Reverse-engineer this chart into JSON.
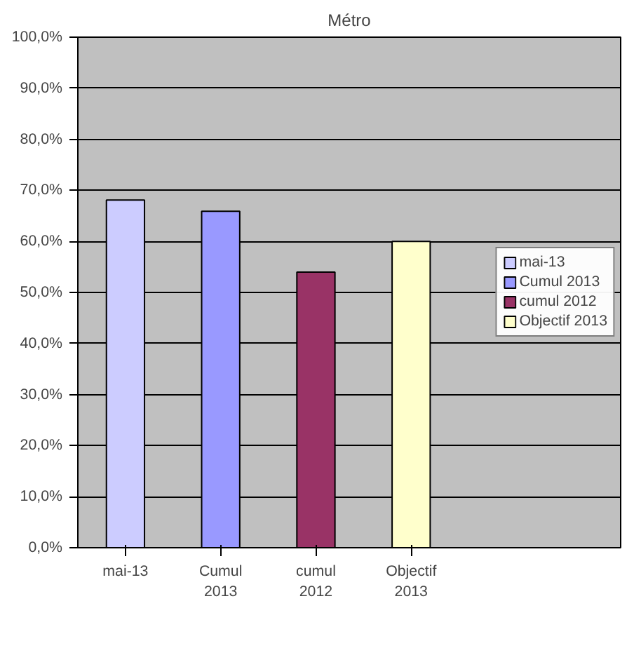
{
  "chart_data": {
    "type": "bar",
    "title": "Métro",
    "categories": [
      "mai-13",
      "Cumul 2013",
      "cumul 2012",
      "Objectif 2013"
    ],
    "series": [
      {
        "name": "mai-13",
        "color": "#ccccff",
        "values": [
          68.1,
          null,
          null,
          null
        ]
      },
      {
        "name": "Cumul 2013",
        "color": "#9999ff",
        "values": [
          null,
          65.9,
          null,
          null
        ]
      },
      {
        "name": "cumul 2012",
        "color": "#993366",
        "values": [
          null,
          null,
          54.0,
          null
        ]
      },
      {
        "name": "Objectif 2013",
        "color": "#ffffcc",
        "values": [
          null,
          null,
          null,
          60.0
        ]
      }
    ],
    "ylim": [
      0,
      100
    ],
    "yticks": [
      {
        "value": 0,
        "label": "0,0%"
      },
      {
        "value": 10,
        "label": "10,0%"
      },
      {
        "value": 20,
        "label": "20,0%"
      },
      {
        "value": 30,
        "label": "30,0%"
      },
      {
        "value": 40,
        "label": "40,0%"
      },
      {
        "value": 50,
        "label": "50,0%"
      },
      {
        "value": 60,
        "label": "60,0%"
      },
      {
        "value": 70,
        "label": "70,0%"
      },
      {
        "value": 80,
        "label": "80,0%"
      },
      {
        "value": 90,
        "label": "90,0%"
      },
      {
        "value": 100,
        "label": "100,0%"
      }
    ],
    "grid": "y",
    "legend": "right"
  }
}
